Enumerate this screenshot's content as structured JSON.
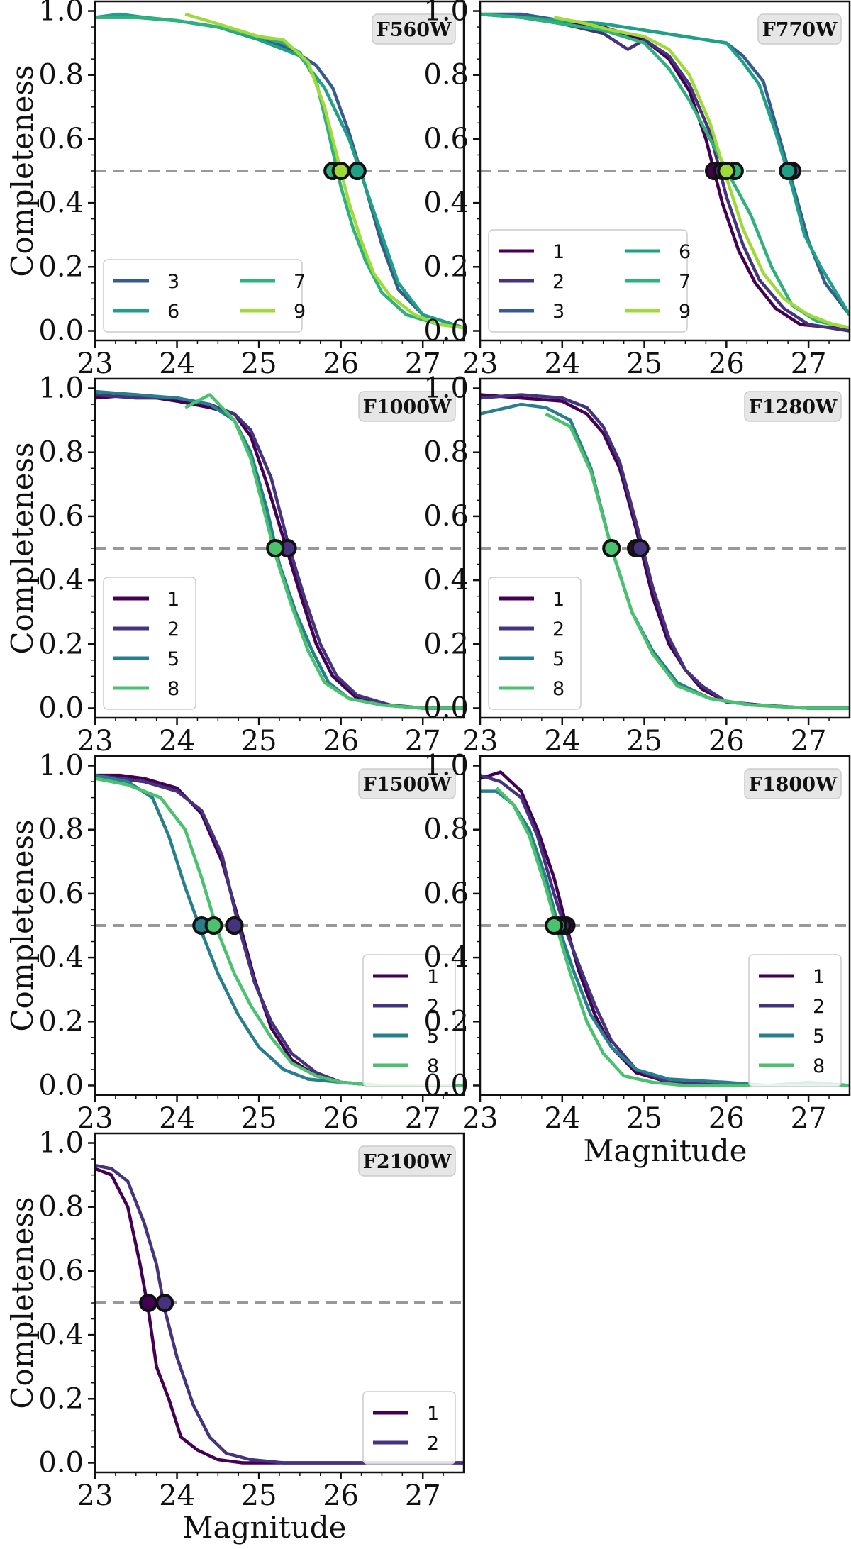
{
  "figure": {
    "ylabel": "Completeness",
    "xlabel": "Magnitude",
    "xlim": [
      23,
      27.5
    ],
    "ylim": [
      -0.03,
      1.03
    ],
    "xticks": [
      23,
      24,
      25,
      26,
      27
    ],
    "yticks": [
      0.0,
      0.2,
      0.4,
      0.6,
      0.8,
      1.0
    ],
    "reference_line": 0.5,
    "colors": {
      "1": "#440154",
      "2": "#46337e",
      "3": "#365c8d",
      "5": "#277f8e",
      "6": "#1fa187",
      "7": "#2db27d",
      "8": "#4ac16d",
      "9": "#a0da39",
      "reference": "#999999",
      "filter_box": "#e6e6e6"
    }
  },
  "chart_data": [
    {
      "type": "line",
      "title": "F560W",
      "legend_position": "lower-left",
      "legend_columns": 2,
      "series": [
        {
          "name": "3",
          "mag50": 26.2,
          "x": [
            23,
            23.5,
            24,
            24.5,
            25,
            25.4,
            25.7,
            25.9,
            26.1,
            26.3,
            26.5,
            26.7,
            27,
            27.5
          ],
          "values": [
            0.98,
            0.98,
            0.97,
            0.95,
            0.92,
            0.88,
            0.83,
            0.76,
            0.62,
            0.45,
            0.27,
            0.13,
            0.05,
            0.01
          ]
        },
        {
          "name": "6",
          "mag50": 26.2,
          "x": [
            23,
            23.3,
            23.6,
            24,
            24.5,
            25,
            25.5,
            25.8,
            26.1,
            26.3,
            26.5,
            26.7,
            27,
            27.5
          ],
          "values": [
            0.98,
            0.99,
            0.98,
            0.97,
            0.95,
            0.91,
            0.86,
            0.76,
            0.6,
            0.45,
            0.3,
            0.15,
            0.05,
            0.01
          ]
        },
        {
          "name": "7",
          "mag50": 25.9,
          "x": [
            23,
            23.5,
            24,
            24.5,
            25,
            25.3,
            25.5,
            25.7,
            25.85,
            26,
            26.15,
            26.3,
            26.5,
            26.8,
            27.2,
            27.5
          ],
          "values": [
            0.98,
            0.98,
            0.97,
            0.95,
            0.92,
            0.9,
            0.87,
            0.78,
            0.62,
            0.45,
            0.32,
            0.22,
            0.12,
            0.05,
            0.02,
            0.01
          ]
        },
        {
          "name": "9",
          "mag50": 26.0,
          "x": [
            24.1,
            24.5,
            25,
            25.3,
            25.6,
            25.8,
            25.95,
            26.1,
            26.25,
            26.4,
            26.6,
            26.9,
            27.2,
            27.5
          ],
          "values": [
            0.99,
            0.96,
            0.92,
            0.91,
            0.84,
            0.7,
            0.55,
            0.4,
            0.28,
            0.18,
            0.11,
            0.05,
            0.02,
            0.01
          ]
        }
      ]
    },
    {
      "type": "line",
      "title": "F770W",
      "legend_position": "lower-left",
      "legend_columns": 2,
      "series": [
        {
          "name": "1",
          "mag50": 25.85,
          "x": [
            23,
            23.5,
            24,
            24.5,
            25,
            25.3,
            25.55,
            25.75,
            25.95,
            26.15,
            26.35,
            26.6,
            26.9,
            27.3,
            27.5
          ],
          "values": [
            0.99,
            0.98,
            0.97,
            0.95,
            0.91,
            0.85,
            0.75,
            0.6,
            0.4,
            0.25,
            0.15,
            0.07,
            0.02,
            0.01,
            0.0
          ]
        },
        {
          "name": "2",
          "mag50": 25.95,
          "x": [
            23,
            23.5,
            24,
            24.5,
            24.8,
            25,
            25.3,
            25.55,
            25.8,
            26,
            26.2,
            26.4,
            26.7,
            27,
            27.5
          ],
          "values": [
            0.99,
            0.98,
            0.96,
            0.93,
            0.88,
            0.91,
            0.86,
            0.77,
            0.62,
            0.42,
            0.27,
            0.16,
            0.07,
            0.02,
            0.0
          ]
        },
        {
          "name": "3",
          "mag50": 26.8,
          "x": [
            23,
            23.5,
            24,
            24.5,
            25,
            25.5,
            26,
            26.2,
            26.45,
            26.65,
            26.85,
            27,
            27.2,
            27.5
          ],
          "values": [
            0.99,
            0.99,
            0.97,
            0.96,
            0.94,
            0.92,
            0.9,
            0.86,
            0.78,
            0.6,
            0.42,
            0.28,
            0.15,
            0.05
          ]
        },
        {
          "name": "6",
          "mag50": 26.75,
          "x": [
            23,
            23.5,
            24,
            24.5,
            25,
            25.5,
            26,
            26.2,
            26.4,
            26.6,
            26.8,
            26.95,
            27.15,
            27.5
          ],
          "values": [
            0.99,
            0.98,
            0.97,
            0.96,
            0.94,
            0.92,
            0.9,
            0.84,
            0.77,
            0.62,
            0.45,
            0.3,
            0.2,
            0.05
          ]
        },
        {
          "name": "7",
          "mag50": 26.1,
          "x": [
            23,
            23.5,
            24,
            24.5,
            25,
            25.3,
            25.55,
            25.8,
            26.05,
            26.3,
            26.55,
            26.8,
            27.1,
            27.5
          ],
          "values": [
            0.99,
            0.98,
            0.96,
            0.94,
            0.9,
            0.82,
            0.72,
            0.6,
            0.48,
            0.36,
            0.2,
            0.08,
            0.03,
            0.01
          ]
        },
        {
          "name": "9",
          "mag50": 26.0,
          "x": [
            23.9,
            24.3,
            24.6,
            25,
            25.3,
            25.55,
            25.8,
            26,
            26.2,
            26.45,
            26.7,
            27,
            27.3,
            27.5
          ],
          "values": [
            0.98,
            0.96,
            0.94,
            0.92,
            0.88,
            0.8,
            0.65,
            0.48,
            0.32,
            0.18,
            0.1,
            0.05,
            0.02,
            0.01
          ]
        }
      ]
    },
    {
      "type": "line",
      "title": "F1000W",
      "legend_position": "lower-left",
      "legend_columns": 1,
      "series": [
        {
          "name": "1",
          "mag50": 25.35,
          "x": [
            23,
            23.5,
            24,
            24.4,
            24.7,
            24.9,
            25.1,
            25.3,
            25.5,
            25.7,
            25.9,
            26.2,
            26.6,
            27,
            27.5
          ],
          "values": [
            0.97,
            0.98,
            0.96,
            0.94,
            0.92,
            0.85,
            0.7,
            0.53,
            0.36,
            0.2,
            0.1,
            0.03,
            0.01,
            0.0,
            0.0
          ]
        },
        {
          "name": "2",
          "mag50": 25.35,
          "x": [
            23,
            23.5,
            24,
            24.4,
            24.7,
            24.9,
            25.15,
            25.35,
            25.55,
            25.75,
            25.95,
            26.2,
            26.6,
            27,
            27.5
          ],
          "values": [
            0.98,
            0.97,
            0.97,
            0.95,
            0.92,
            0.87,
            0.72,
            0.52,
            0.35,
            0.2,
            0.1,
            0.04,
            0.01,
            0.0,
            0.0
          ]
        },
        {
          "name": "5",
          "mag50": 25.2,
          "x": [
            23,
            23.5,
            24,
            24.4,
            24.7,
            24.9,
            25.1,
            25.25,
            25.45,
            25.65,
            25.85,
            26.1,
            26.5,
            27,
            27.5
          ],
          "values": [
            0.99,
            0.98,
            0.97,
            0.95,
            0.9,
            0.8,
            0.62,
            0.45,
            0.3,
            0.18,
            0.08,
            0.03,
            0.01,
            0.0,
            0.0
          ]
        },
        {
          "name": "8",
          "mag50": 25.2,
          "x": [
            24.1,
            24.4,
            24.7,
            24.9,
            25.05,
            25.2,
            25.4,
            25.6,
            25.8,
            26.1,
            26.5,
            27,
            27.5
          ],
          "values": [
            0.94,
            0.98,
            0.9,
            0.78,
            0.63,
            0.48,
            0.32,
            0.18,
            0.08,
            0.03,
            0.01,
            0.0,
            0.0
          ]
        }
      ]
    },
    {
      "type": "line",
      "title": "F1280W",
      "legend_position": "lower-left",
      "legend_columns": 1,
      "series": [
        {
          "name": "1",
          "mag50": 24.9,
          "x": [
            23,
            23.5,
            24,
            24.3,
            24.5,
            24.7,
            24.9,
            25.1,
            25.3,
            25.5,
            25.7,
            26,
            26.4,
            27,
            27.5
          ],
          "values": [
            0.98,
            0.97,
            0.96,
            0.92,
            0.86,
            0.75,
            0.56,
            0.35,
            0.2,
            0.12,
            0.06,
            0.02,
            0.01,
            0.0,
            0.0
          ]
        },
        {
          "name": "2",
          "mag50": 24.95,
          "x": [
            23,
            23.5,
            24,
            24.3,
            24.5,
            24.7,
            24.9,
            25.1,
            25.3,
            25.5,
            25.7,
            26,
            26.4,
            27,
            27.5
          ],
          "values": [
            0.97,
            0.98,
            0.97,
            0.94,
            0.88,
            0.77,
            0.58,
            0.38,
            0.22,
            0.12,
            0.07,
            0.02,
            0.01,
            0.0,
            0.0
          ]
        },
        {
          "name": "5",
          "mag50": 24.6,
          "x": [
            23,
            23.5,
            23.8,
            24.1,
            24.35,
            24.6,
            24.85,
            25.1,
            25.4,
            25.8,
            26.3,
            27,
            27.5
          ],
          "values": [
            0.92,
            0.95,
            0.94,
            0.9,
            0.75,
            0.5,
            0.3,
            0.18,
            0.08,
            0.03,
            0.01,
            0.0,
            0.0
          ]
        },
        {
          "name": "8",
          "mag50": 24.6,
          "x": [
            23.8,
            24.1,
            24.35,
            24.6,
            24.85,
            25.1,
            25.4,
            25.8,
            26.3,
            27,
            27.5
          ],
          "values": [
            0.92,
            0.88,
            0.74,
            0.5,
            0.3,
            0.17,
            0.07,
            0.03,
            0.01,
            0.0,
            0.0
          ]
        }
      ]
    },
    {
      "type": "line",
      "title": "F1500W",
      "legend_position": "lower-right",
      "legend_columns": 1,
      "series": [
        {
          "name": "1",
          "mag50": 24.7,
          "x": [
            23,
            23.3,
            23.6,
            24,
            24.3,
            24.55,
            24.75,
            24.95,
            25.15,
            25.4,
            25.7,
            26,
            26.5,
            27,
            27.5
          ],
          "values": [
            0.97,
            0.97,
            0.96,
            0.93,
            0.85,
            0.7,
            0.52,
            0.33,
            0.18,
            0.08,
            0.03,
            0.01,
            0.0,
            0.0,
            0.0
          ]
        },
        {
          "name": "2",
          "mag50": 24.7,
          "x": [
            23,
            23.3,
            23.6,
            24,
            24.3,
            24.55,
            24.75,
            24.95,
            25.15,
            25.4,
            25.7,
            26,
            26.5,
            27,
            27.5
          ],
          "values": [
            0.97,
            0.96,
            0.95,
            0.92,
            0.86,
            0.72,
            0.5,
            0.32,
            0.2,
            0.1,
            0.04,
            0.01,
            0.0,
            0.0,
            0.0
          ]
        },
        {
          "name": "5",
          "mag50": 24.3,
          "x": [
            23,
            23.4,
            23.7,
            23.9,
            24.1,
            24.3,
            24.5,
            24.75,
            25,
            25.3,
            25.6,
            26,
            26.5,
            27,
            27.5
          ],
          "values": [
            0.97,
            0.95,
            0.9,
            0.78,
            0.62,
            0.48,
            0.35,
            0.22,
            0.12,
            0.05,
            0.02,
            0.01,
            0.0,
            0.0,
            0.0
          ]
        },
        {
          "name": "8",
          "mag50": 24.45,
          "x": [
            23,
            23.4,
            23.8,
            24.1,
            24.3,
            24.5,
            24.7,
            24.9,
            25.15,
            25.4,
            25.7,
            26,
            26.5,
            27,
            27.5
          ],
          "values": [
            0.96,
            0.94,
            0.9,
            0.8,
            0.65,
            0.48,
            0.35,
            0.25,
            0.15,
            0.07,
            0.03,
            0.01,
            0.0,
            0.0,
            0.0
          ]
        }
      ]
    },
    {
      "type": "line",
      "title": "F1800W",
      "legend_position": "lower-right",
      "legend_columns": 1,
      "series": [
        {
          "name": "1",
          "mag50": 24.05,
          "x": [
            23,
            23.25,
            23.5,
            23.7,
            23.9,
            24.05,
            24.2,
            24.4,
            24.6,
            24.9,
            25.3,
            26,
            26.5,
            27,
            27.5
          ],
          "values": [
            0.96,
            0.98,
            0.92,
            0.8,
            0.65,
            0.5,
            0.36,
            0.22,
            0.12,
            0.04,
            0.01,
            0.0,
            0.0,
            0.0,
            0.0
          ]
        },
        {
          "name": "2",
          "mag50": 24.0,
          "x": [
            23,
            23.25,
            23.5,
            23.7,
            23.9,
            24.05,
            24.2,
            24.4,
            24.6,
            24.9,
            25.3,
            26,
            26.5,
            27,
            27.5
          ],
          "values": [
            0.97,
            0.95,
            0.9,
            0.78,
            0.6,
            0.48,
            0.38,
            0.25,
            0.14,
            0.05,
            0.01,
            0.0,
            0.0,
            0.0,
            0.0
          ]
        },
        {
          "name": "5",
          "mag50": 23.95,
          "x": [
            23,
            23.2,
            23.4,
            23.6,
            23.8,
            23.95,
            24.15,
            24.35,
            24.6,
            24.9,
            25.3,
            26,
            26.5,
            27,
            27.5
          ],
          "values": [
            0.92,
            0.92,
            0.88,
            0.8,
            0.65,
            0.5,
            0.35,
            0.22,
            0.12,
            0.05,
            0.02,
            0.01,
            0.0,
            0.01,
            0.0
          ]
        },
        {
          "name": "8",
          "mag50": 23.9,
          "x": [
            23.2,
            23.4,
            23.6,
            23.8,
            23.95,
            24.1,
            24.3,
            24.5,
            24.75,
            25.1,
            25.5,
            26,
            26.5,
            27,
            27.5
          ],
          "values": [
            0.93,
            0.88,
            0.78,
            0.62,
            0.48,
            0.35,
            0.2,
            0.1,
            0.03,
            0.01,
            0.0,
            0.0,
            0.0,
            0.0,
            0.0
          ]
        }
      ]
    },
    {
      "type": "line",
      "title": "F2100W",
      "legend_position": "lower-right",
      "legend_columns": 1,
      "series": [
        {
          "name": "1",
          "mag50": 23.65,
          "x": [
            23,
            23.2,
            23.4,
            23.55,
            23.65,
            23.75,
            23.9,
            24.05,
            24.25,
            24.5,
            24.8,
            25.2,
            26,
            27,
            27.5
          ],
          "values": [
            0.92,
            0.9,
            0.8,
            0.62,
            0.48,
            0.3,
            0.2,
            0.08,
            0.04,
            0.01,
            0.0,
            0.0,
            0.0,
            0.0,
            0.0
          ]
        },
        {
          "name": "2",
          "mag50": 23.85,
          "x": [
            23,
            23.2,
            23.4,
            23.6,
            23.75,
            23.85,
            24,
            24.2,
            24.4,
            24.6,
            24.9,
            25.3,
            26,
            27,
            27.5
          ],
          "values": [
            0.93,
            0.92,
            0.88,
            0.75,
            0.62,
            0.48,
            0.33,
            0.18,
            0.08,
            0.03,
            0.01,
            0.0,
            0.0,
            0.0,
            0.0
          ]
        }
      ]
    }
  ]
}
